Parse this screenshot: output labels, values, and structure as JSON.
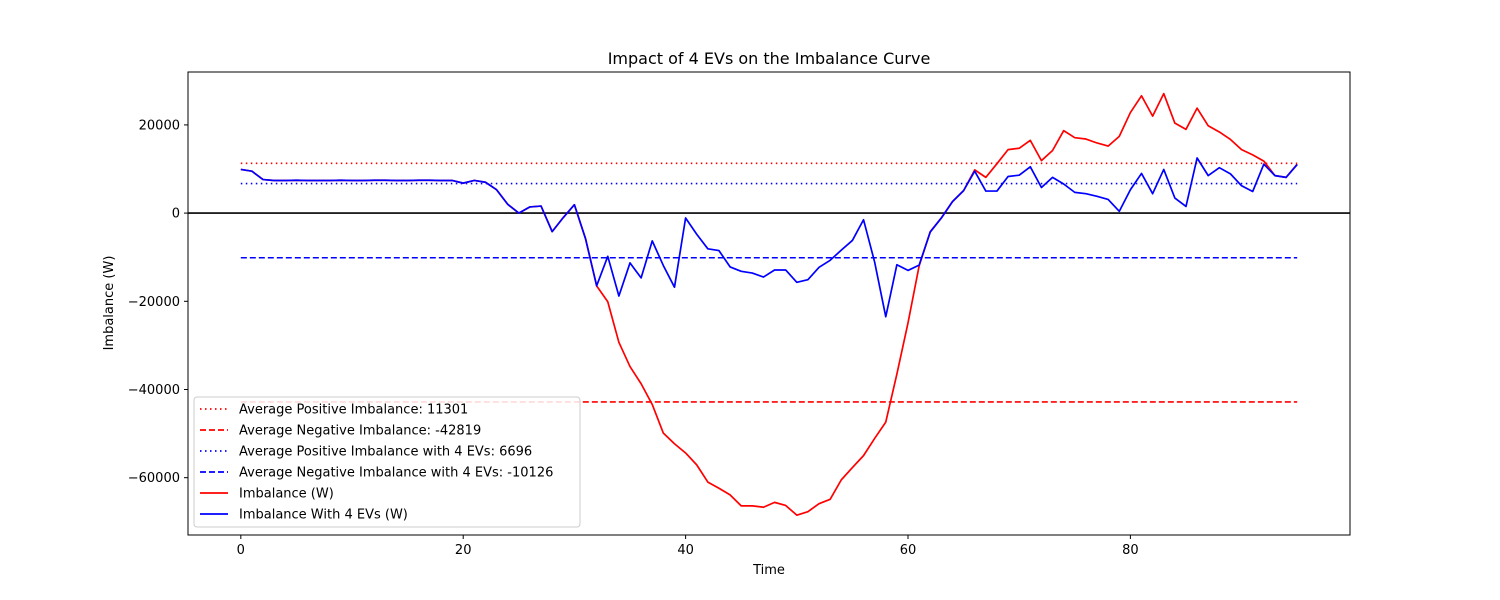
{
  "chart_data": {
    "type": "line",
    "title": "Impact of 4 EVs on the Imbalance Curve",
    "xlabel": "Time",
    "ylabel": "Imbalance (W)",
    "xlim": [
      -4.75,
      99.75
    ],
    "ylim": [
      -73000,
      32000
    ],
    "xticks": [
      0,
      20,
      40,
      60,
      80
    ],
    "yticks": [
      -60000,
      -40000,
      -20000,
      0,
      20000
    ],
    "ytick_labels": [
      "−60000",
      "−40000",
      "−20000",
      "0",
      "20000"
    ],
    "grid": false,
    "legend_position": "lower-left",
    "zero_line": 0,
    "series": [
      {
        "name": "Imbalance (W)",
        "color": "#ff0000",
        "style": "solid",
        "x": [
          0,
          1,
          2,
          3,
          4,
          5,
          6,
          7,
          8,
          9,
          10,
          11,
          12,
          13,
          14,
          15,
          16,
          17,
          18,
          19,
          20,
          21,
          22,
          23,
          24,
          25,
          26,
          27,
          28,
          29,
          30,
          31,
          32,
          33,
          34,
          35,
          36,
          37,
          38,
          39,
          40,
          41,
          42,
          43,
          44,
          45,
          46,
          47,
          48,
          49,
          50,
          51,
          52,
          53,
          54,
          55,
          56,
          57,
          58,
          59,
          60,
          61,
          62,
          63,
          64,
          65,
          66,
          67,
          68,
          69,
          70,
          71,
          72,
          73,
          74,
          75,
          76,
          77,
          78,
          79,
          80,
          81,
          82,
          83,
          84,
          85,
          86,
          87,
          88,
          89,
          90,
          91,
          92,
          93,
          94,
          95
        ],
        "y": [
          9900,
          9500,
          7600,
          7400,
          7400,
          7450,
          7400,
          7400,
          7400,
          7450,
          7400,
          7400,
          7450,
          7450,
          7400,
          7400,
          7450,
          7450,
          7400,
          7400,
          6800,
          7400,
          7000,
          5300,
          2000,
          0,
          1400,
          1600,
          -4200,
          -1000,
          1900,
          -5800,
          -16500,
          -20100,
          -29300,
          -34800,
          -38700,
          -43400,
          -49900,
          -52300,
          -54400,
          -57100,
          -61000,
          -62400,
          -63900,
          -66400,
          -66400,
          -66700,
          -65600,
          -66300,
          -68500,
          -67700,
          -65900,
          -64900,
          -60500,
          -57700,
          -55000,
          -51100,
          -47400,
          -36500,
          -24900,
          -12000,
          -4200,
          -1100,
          2600,
          5100,
          9800,
          8100,
          11200,
          14400,
          14700,
          16500,
          11900,
          14200,
          18700,
          17100,
          16800,
          15900,
          15200,
          17400,
          22800,
          26600,
          22000,
          27100,
          20400,
          19000,
          23800,
          19800,
          18400,
          16700,
          14400,
          13200,
          11800,
          8500,
          8100,
          11100
        ]
      },
      {
        "name": "Imbalance With 4 EVs (W)",
        "color": "#0000ff",
        "style": "solid",
        "x": [
          0,
          1,
          2,
          3,
          4,
          5,
          6,
          7,
          8,
          9,
          10,
          11,
          12,
          13,
          14,
          15,
          16,
          17,
          18,
          19,
          20,
          21,
          22,
          23,
          24,
          25,
          26,
          27,
          28,
          29,
          30,
          31,
          32,
          33,
          34,
          35,
          36,
          37,
          38,
          39,
          40,
          41,
          42,
          43,
          44,
          45,
          46,
          47,
          48,
          49,
          50,
          51,
          52,
          53,
          54,
          55,
          56,
          57,
          58,
          59,
          60,
          61,
          62,
          63,
          64,
          65,
          66,
          67,
          68,
          69,
          70,
          71,
          72,
          73,
          74,
          75,
          76,
          77,
          78,
          79,
          80,
          81,
          82,
          83,
          84,
          85,
          86,
          87,
          88,
          89,
          90,
          91,
          92,
          93,
          94,
          95
        ],
        "y": [
          9900,
          9500,
          7600,
          7400,
          7400,
          7450,
          7400,
          7400,
          7400,
          7450,
          7400,
          7400,
          7450,
          7450,
          7400,
          7400,
          7450,
          7450,
          7400,
          7400,
          6800,
          7400,
          7000,
          5300,
          2000,
          0,
          1400,
          1600,
          -4200,
          -1000,
          1900,
          -5800,
          -16500,
          -9800,
          -18800,
          -11300,
          -14700,
          -6300,
          -11900,
          -16800,
          -1100,
          -4800,
          -8100,
          -8500,
          -12200,
          -13200,
          -13600,
          -14500,
          -12900,
          -12900,
          -15700,
          -15100,
          -12300,
          -10700,
          -8400,
          -6200,
          -1500,
          -11100,
          -23500,
          -11700,
          -13000,
          -11800,
          -4300,
          -1100,
          2600,
          5100,
          9500,
          5000,
          5000,
          8300,
          8600,
          10500,
          5800,
          8100,
          6600,
          4700,
          4400,
          3800,
          3100,
          400,
          5300,
          9000,
          4400,
          9900,
          3400,
          1500,
          12500,
          8500,
          10300,
          8900,
          6200,
          4900,
          11100,
          8500,
          8100,
          11000
        ]
      }
    ],
    "reference_lines": [
      {
        "name": "Average Positive Imbalance: 11301",
        "value": 11301,
        "color": "#ff0000",
        "style": "dotted"
      },
      {
        "name": "Average Negative Imbalance: -42819",
        "value": -42819,
        "color": "#ff0000",
        "style": "dashed"
      },
      {
        "name": "Average Positive Imbalance with 4 EVs: 6696",
        "value": 6696,
        "color": "#0000ff",
        "style": "dotted"
      },
      {
        "name": "Average Negative Imbalance with 4 EVs: -10126",
        "value": -10126,
        "color": "#0000ff",
        "style": "dashed"
      }
    ],
    "reference_x_range": [
      0,
      95
    ],
    "legend": [
      {
        "label": "Average Positive Imbalance: 11301",
        "color": "#ff0000",
        "style": "dotted"
      },
      {
        "label": "Average Negative Imbalance: -42819",
        "color": "#ff0000",
        "style": "dashed"
      },
      {
        "label": "Average Positive Imbalance with 4 EVs: 6696",
        "color": "#0000ff",
        "style": "dotted"
      },
      {
        "label": "Average Negative Imbalance with 4 EVs: -10126",
        "color": "#0000ff",
        "style": "dashed"
      },
      {
        "label": "Imbalance (W)",
        "color": "#ff0000",
        "style": "solid"
      },
      {
        "label": "Imbalance With 4 EVs (W)",
        "color": "#0000ff",
        "style": "solid"
      }
    ]
  }
}
